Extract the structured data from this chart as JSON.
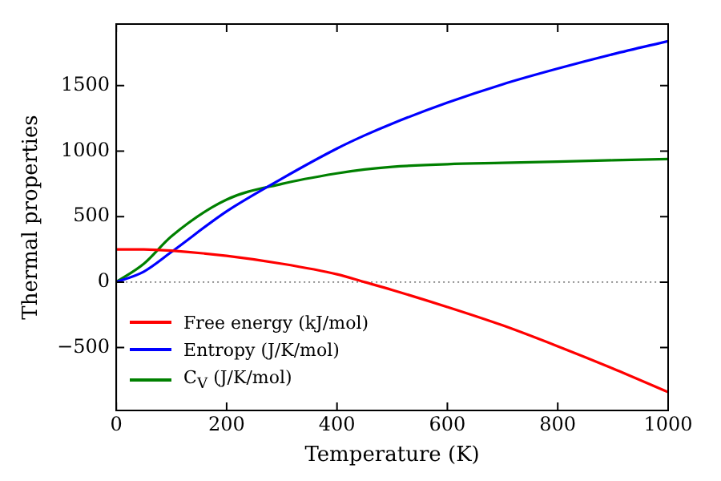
{
  "chart_data": {
    "type": "line",
    "xlabel": "Temperature (K)",
    "ylabel": "Thermal properties",
    "xlim": [
      0,
      1000
    ],
    "xticks": [
      0,
      200,
      400,
      600,
      800,
      1000
    ],
    "ylim": [
      -980,
      1970
    ],
    "yticks": [
      -500,
      0,
      500,
      1000,
      1500
    ],
    "grid": false,
    "legend": "bottom left",
    "marker": "none",
    "line_style": "solid",
    "ref_lines": [
      {
        "axis": "y",
        "value": 0,
        "color": "#808080",
        "line_style": "dotted"
      }
    ],
    "x": [
      0,
      50,
      100,
      200,
      300,
      400,
      450,
      500,
      600,
      700,
      800,
      900,
      1000
    ],
    "series": [
      {
        "name": "Free energy (kJ/mol)",
        "color": "#ff0000",
        "values": [
          250,
          250,
          240,
          200,
          140,
          60,
          0,
          -60,
          -190,
          -330,
          -490,
          -660,
          -840
        ]
      },
      {
        "name": "Entropy (J/K/mol)",
        "color": "#0000ff",
        "values": [
          0,
          80,
          230,
          540,
          790,
          1020,
          1120,
          1210,
          1370,
          1510,
          1630,
          1740,
          1840
        ]
      },
      {
        "name": "C$_{V}$ (J/K/mol)",
        "color": "#008000",
        "values": [
          0,
          140,
          350,
          630,
          750,
          830,
          860,
          880,
          900,
          910,
          920,
          930,
          940
        ]
      }
    ]
  }
}
